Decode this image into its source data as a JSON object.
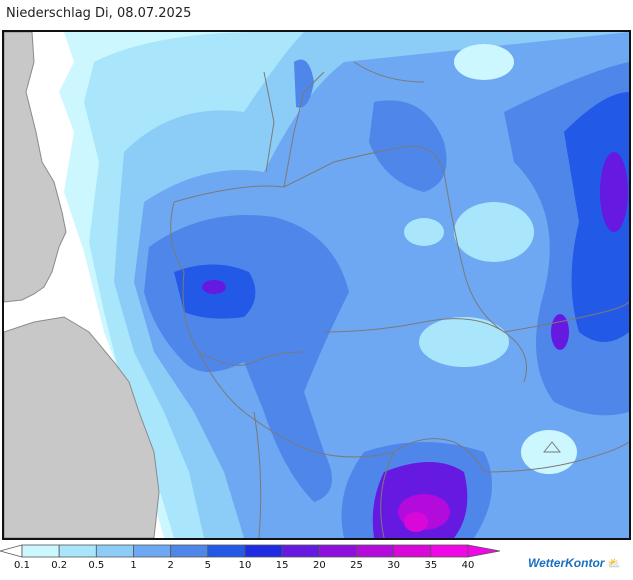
{
  "header": {
    "title": "Niederschlag Di, 08.07.2025"
  },
  "legend": {
    "labels": [
      "0.1",
      "0.2",
      "0.5",
      "1",
      "2",
      "5",
      "10",
      "15",
      "20",
      "25",
      "30",
      "35",
      "40"
    ],
    "colors": [
      "#ffffff",
      "#cdf7ff",
      "#a9e6fb",
      "#8ccdf7",
      "#6fa8f2",
      "#4f86ea",
      "#2359e7",
      "#1f2be3",
      "#6619e0",
      "#8f10dd",
      "#b20bdb",
      "#d808d8",
      "#f007e8"
    ]
  },
  "brand": {
    "name": "WetterKontor",
    "icon": "weather-logo-icon"
  },
  "map": {
    "land_color": "#c8c8c8",
    "border_color": "#7a7a7a"
  }
}
